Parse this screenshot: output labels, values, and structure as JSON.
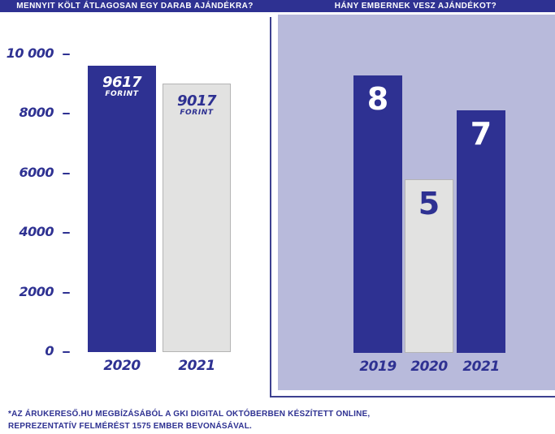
{
  "page": {
    "background": "#ffffff",
    "accent_blue": "#2e3192",
    "panel_lavender": "#b8badb",
    "bar_gray": "#e2e2e1"
  },
  "header": {
    "left_title": "MENNYIT KÖLT ÁTLAGOSAN EGY DARAB AJÁNDÉKRA?",
    "right_title": "HÁNY EMBERNEK VESZ AJÁNDÉKOT?"
  },
  "footer": {
    "line1": "*AZ ÁRUKERESŐ.HU MEGBÍZÁSÁBÓL A GKI DIGITAL OKTÓBERBEN KÉSZÍTETT ONLINE,",
    "line2": "REPREZENTATÍV FELMÉRÉST 1575 EMBER BEVONÁSÁVAL."
  },
  "chart_data": [
    {
      "id": "spend-per-gift",
      "type": "bar",
      "title": "MENNYIT KÖLT ÁTLAGOSAN EGY DARAB AJÁNDÉKRA?",
      "categories": [
        "2020",
        "2021"
      ],
      "values": [
        9617,
        9017
      ],
      "value_labels": [
        "9617",
        "9017"
      ],
      "unit_label": "FORINT",
      "bar_styles": [
        "blue",
        "light"
      ],
      "ylabel": "forint",
      "ylim": [
        0,
        10000
      ],
      "yticks": [
        {
          "label": "10 000",
          "value": 10000
        },
        {
          "label": "8000",
          "value": 8000
        },
        {
          "label": "6000",
          "value": 6000
        },
        {
          "label": "4000",
          "value": 4000
        },
        {
          "label": "2000",
          "value": 2000
        },
        {
          "label": "0",
          "value": 0
        }
      ],
      "grid": false,
      "legend": "none"
    },
    {
      "id": "people-count",
      "type": "bar",
      "title": "HÁNY EMBERNEK VESZ AJÁNDÉKOT?",
      "categories": [
        "2019",
        "2020",
        "2021"
      ],
      "values": [
        8,
        5,
        7
      ],
      "value_labels": [
        "8",
        "5",
        "7"
      ],
      "bar_styles": [
        "blue",
        "light",
        "blue"
      ],
      "ylim": [
        0,
        10
      ],
      "yticks": [],
      "panel_background": "#b8badb",
      "grid": false,
      "legend": "none"
    }
  ]
}
